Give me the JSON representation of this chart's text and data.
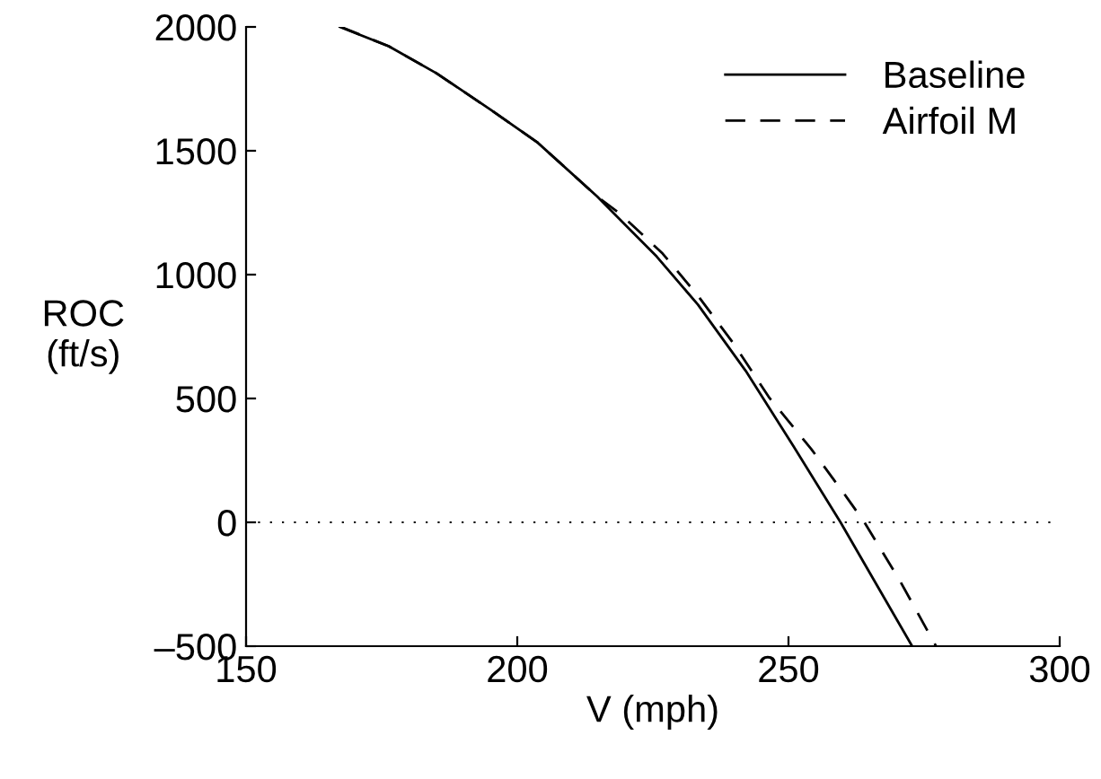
{
  "chart_data": {
    "type": "line",
    "xlabel": "V (mph)",
    "ylabel": "ROC\n(ft/s)",
    "xlim": [
      150,
      300
    ],
    "xticks": [
      150,
      200,
      250,
      300
    ],
    "ylim": [
      -500,
      2000
    ],
    "yticks": [
      {
        "value": -500,
        "label": "–500"
      },
      0,
      500,
      1000,
      1500,
      2000
    ],
    "legend": "top right",
    "grid": false,
    "ref_lines": [
      {
        "axis": "y",
        "value": 0,
        "line_style": "dotted",
        "color": "#000000"
      }
    ],
    "series": [
      {
        "name": "Baseline",
        "color": "#000000",
        "line_style": "solid",
        "x": [
          167.3,
          176.3,
          185.1,
          195,
          203.7,
          214.7,
          225.7,
          233.3,
          242.1,
          250.9,
          259.6,
          266.2,
          272.8
        ],
        "values": [
          2000,
          1922,
          1813,
          1667,
          1534,
          1316,
          1073,
          879,
          612,
          308,
          0,
          -250,
          -500
        ]
      },
      {
        "name": "Airfoil M",
        "color": "#000000",
        "line_style": "dashed",
        "x": [
          167.5,
          176.3,
          185.1,
          195,
          203.7,
          214.7,
          219.1,
          226.8,
          233.3,
          239.9,
          246.5,
          254.2,
          260.7,
          264,
          270.6,
          277.2
        ],
        "values": [
          2000,
          1922,
          1813,
          1667,
          1534,
          1316,
          1243,
          1085,
          915,
          721,
          502,
          296,
          102,
          0,
          -238,
          -500
        ]
      }
    ]
  }
}
